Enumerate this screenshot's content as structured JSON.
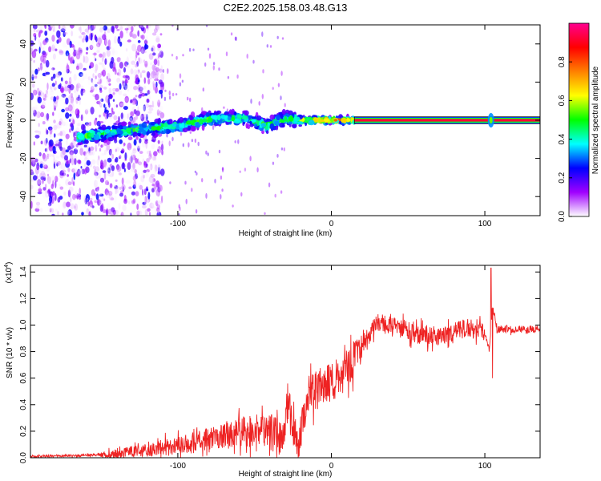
{
  "title": "C2E2.2025.158.03.48.G13",
  "chart_data": [
    {
      "type": "heatmap",
      "xlabel": "Height of straight line (km)",
      "ylabel": "Frequency (Hz)",
      "xlim": [
        -196,
        136
      ],
      "ylim": [
        -50,
        50
      ],
      "x_ticks": [
        -100,
        0,
        100
      ],
      "x_tick_labels": [
        "-100",
        "0",
        "100"
      ],
      "y_ticks": [
        -40,
        -20,
        0,
        20,
        40
      ],
      "y_tick_labels": [
        "-40",
        "-20",
        "0",
        "20",
        "40"
      ],
      "features": {
        "noisy_region_x": [
          -196,
          -110
        ],
        "drift_track": [
          [
            -165,
            -9
          ],
          [
            -140,
            -6
          ],
          [
            -115,
            -4
          ],
          [
            -100,
            -3
          ],
          [
            -85,
            0
          ],
          [
            -70,
            1
          ],
          [
            -55,
            1
          ],
          [
            -42,
            -3
          ],
          [
            -30,
            1
          ],
          [
            -20,
            0
          ],
          [
            10,
            0
          ],
          [
            136,
            0
          ]
        ],
        "stable_line_start_x": 15,
        "stable_line_freq": 0,
        "spike_x": 104
      },
      "colorbar": {
        "label": "Normalized spectral amplitude",
        "range": [
          0,
          1
        ],
        "ticks": [
          0.0,
          0.2,
          0.4,
          0.6,
          0.8
        ],
        "tick_labels": [
          "0.0",
          "0.2",
          "0.4",
          "0.6",
          "0.8"
        ],
        "colors": [
          "#ffffff",
          "#a000ff",
          "#0000ff",
          "#00ffff",
          "#00ff00",
          "#ffff00",
          "#ff8000",
          "#ff0000",
          "#ff0090"
        ]
      }
    },
    {
      "type": "line",
      "xlabel": "Height of straight line (km)",
      "ylabel": "SNR (10 * v/v)",
      "scale_note": "(x10",
      "scale_exp": "4",
      "scale_close": ")",
      "xlim": [
        -196,
        136
      ],
      "ylim": [
        0,
        1.45
      ],
      "x_ticks": [
        -100,
        0,
        100
      ],
      "x_tick_labels": [
        "-100",
        "0",
        "100"
      ],
      "y_ticks": [
        0.0,
        0.2,
        0.4,
        0.6,
        0.8,
        1.0,
        1.2,
        1.4
      ],
      "y_tick_labels": [
        "0.0",
        "0.2",
        "0.4",
        "0.6",
        "0.8",
        "1.0",
        "1.2",
        "1.4"
      ],
      "series_color": "#ee2222",
      "trend": [
        [
          -196,
          0.01
        ],
        [
          -150,
          0.02
        ],
        [
          -120,
          0.06
        ],
        [
          -100,
          0.09
        ],
        [
          -80,
          0.14
        ],
        [
          -60,
          0.18
        ],
        [
          -45,
          0.22
        ],
        [
          -32,
          0.15
        ],
        [
          -28,
          0.45
        ],
        [
          -22,
          0.06
        ],
        [
          -15,
          0.48
        ],
        [
          -5,
          0.55
        ],
        [
          5,
          0.58
        ],
        [
          12,
          0.7
        ],
        [
          20,
          0.85
        ],
        [
          30,
          1.02
        ],
        [
          40,
          1.0
        ],
        [
          55,
          0.93
        ],
        [
          70,
          0.92
        ],
        [
          85,
          0.97
        ],
        [
          95,
          0.98
        ],
        [
          100,
          0.95
        ],
        [
          103,
          0.8
        ],
        [
          105,
          1.15
        ],
        [
          108,
          0.97
        ],
        [
          120,
          0.97
        ],
        [
          136,
          0.97
        ]
      ],
      "spike_points": [
        [
          104,
          1.43
        ],
        [
          105,
          0.6
        ]
      ]
    }
  ]
}
